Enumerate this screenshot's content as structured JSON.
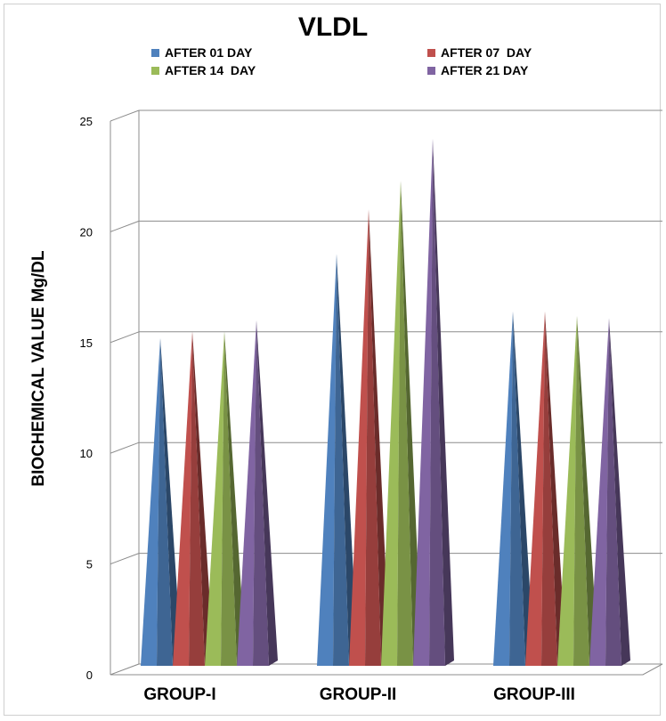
{
  "chart_data": {
    "type": "bar",
    "title": "VLDL",
    "ylabel": "BIOCHEMICAL VALUE Mg/DL",
    "xlabel": "",
    "categories": [
      "GROUP-I",
      "GROUP-II",
      "GROUP-III"
    ],
    "ylim": [
      0,
      25
    ],
    "yticks": [
      "0",
      "5",
      "10",
      "15",
      "20",
      "25"
    ],
    "grid": true,
    "legend_position": "top",
    "series": [
      {
        "name": "AFTER 01 DAY",
        "color": "#4F81BD",
        "values": [
          15.2,
          19.0,
          16.4
        ]
      },
      {
        "name": "AFTER 07  DAY",
        "color": "#C0504D",
        "values": [
          15.5,
          21.0,
          16.4
        ]
      },
      {
        "name": "AFTER 14  DAY",
        "color": "#9BBB59",
        "values": [
          15.5,
          22.3,
          16.2
        ]
      },
      {
        "name": "AFTER 21 DAY",
        "color": "#8064A2",
        "values": [
          16.0,
          24.2,
          16.1
        ]
      }
    ]
  }
}
